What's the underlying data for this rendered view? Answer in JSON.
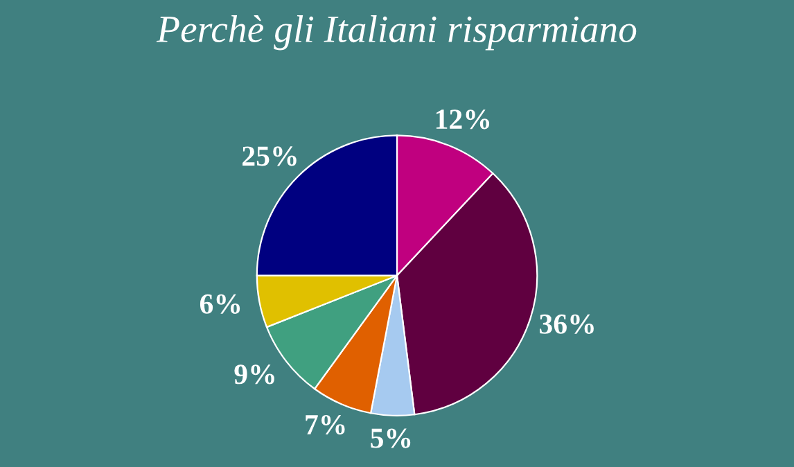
{
  "chart_data": {
    "type": "pie",
    "title": "Perchè gli Italiani risparmiano",
    "categories": [
      null,
      null,
      null,
      null,
      null,
      null,
      null
    ],
    "values": [
      12,
      36,
      5,
      7,
      9,
      6,
      25
    ],
    "colors": [
      "#c0007f",
      "#600040",
      "#a6caf0",
      "#e06000",
      "#40a080",
      "#e0c000",
      "#000080"
    ],
    "value_labels": [
      "12%",
      "36%",
      "5%",
      "7%",
      "9%",
      "6%",
      "25%"
    ],
    "legend": false
  }
}
